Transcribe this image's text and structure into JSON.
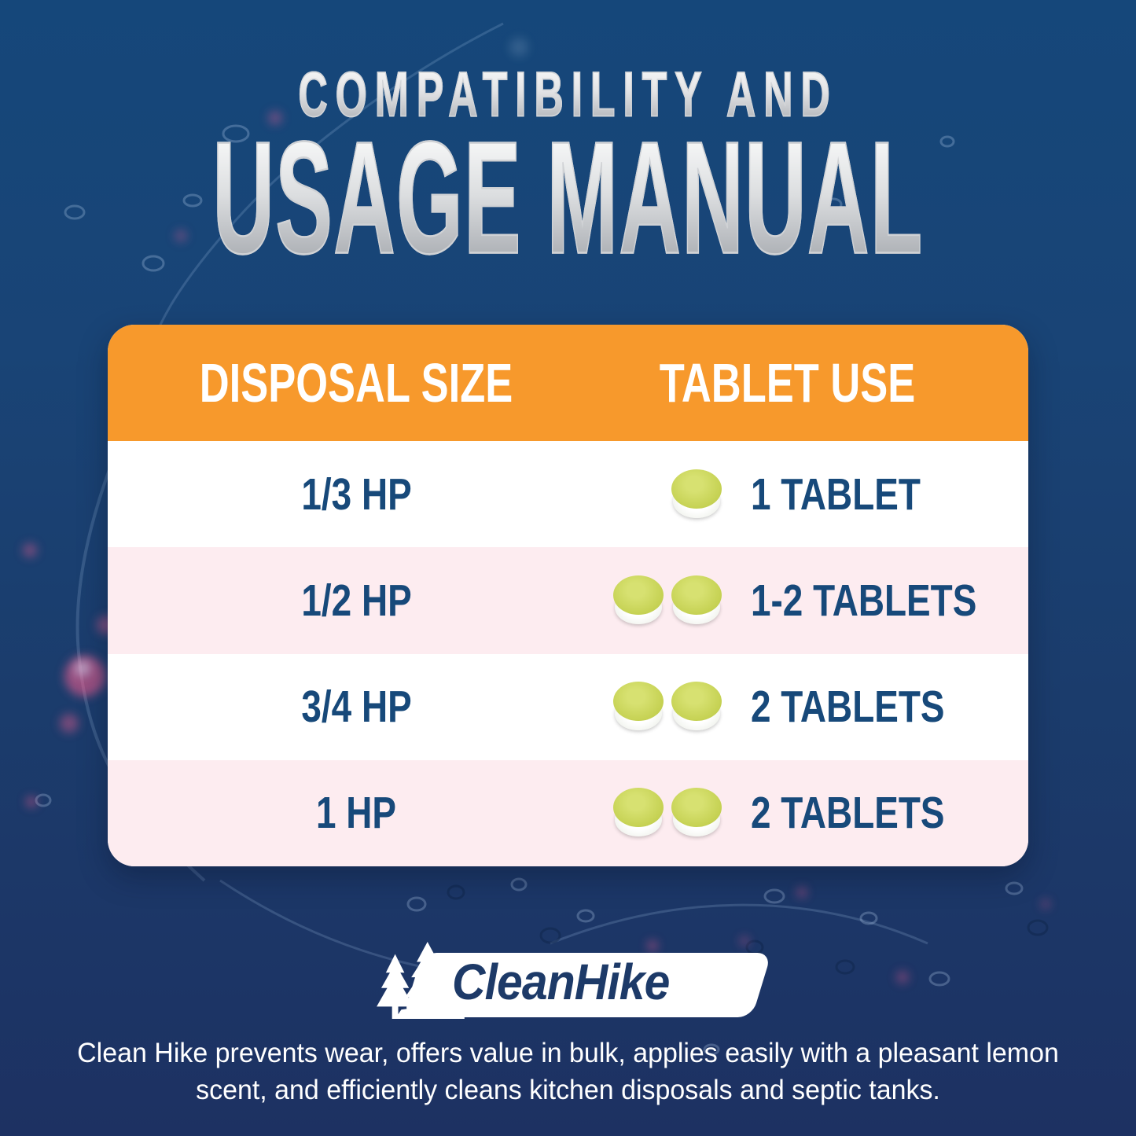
{
  "title": {
    "line1": "COMPATIBILITY AND",
    "line2": "USAGE MANUAL"
  },
  "table": {
    "header": {
      "col1": "DISPOSAL SIZE",
      "col2": "TABLET USE"
    },
    "rows": [
      {
        "disposal_size": "1/3 HP",
        "tablet_count": 1,
        "tablet_use": "1 TABLET"
      },
      {
        "disposal_size": "1/2 HP",
        "tablet_count": 2,
        "tablet_use": "1-2 TABLETS"
      },
      {
        "disposal_size": "3/4 HP",
        "tablet_count": 2,
        "tablet_use": "2 TABLETS"
      },
      {
        "disposal_size": "1 HP",
        "tablet_count": 2,
        "tablet_use": "2 TABLETS"
      }
    ]
  },
  "logo": {
    "brand": "CleanHike",
    "icon": "pine-trees-icon"
  },
  "footer": {
    "line1": "Clean Hike prevents wear, offers value in bulk, applies easily with a pleasant lemon",
    "line2": "scent, and efficiently cleans kitchen disposals and septic tanks."
  },
  "colors": {
    "background_top": "#15477a",
    "background_bottom": "#1d3162",
    "header_orange": "#f7992c",
    "row_pink": "#fdecf0",
    "row_white": "#ffffff",
    "text_navy": "#17497a",
    "header_text": "#ffffff",
    "title_silver_light": "#fafbfb",
    "title_silver_dark": "#9da1a7",
    "tablet_green": "#c6d254",
    "tablet_white": "#ffffff",
    "logo_navy": "#1d3a68"
  }
}
